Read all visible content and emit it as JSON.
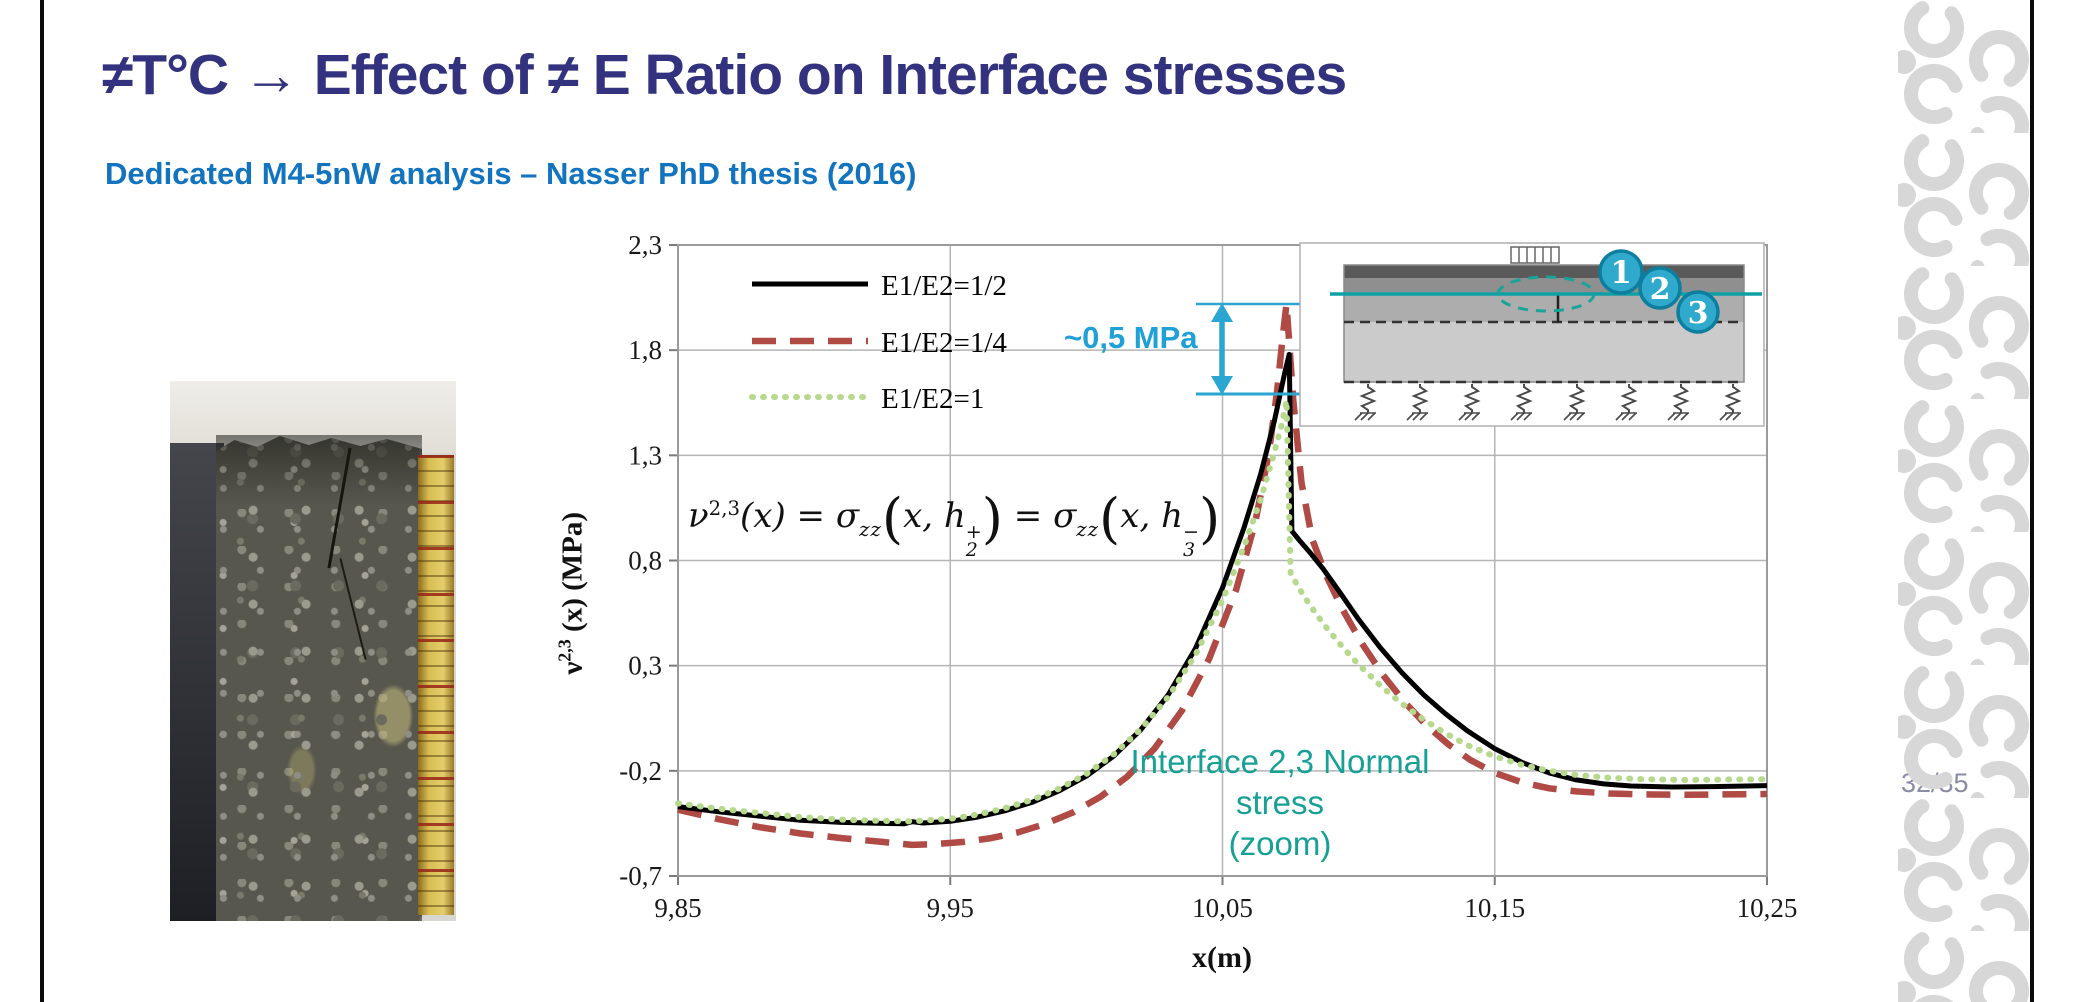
{
  "slide": {
    "title": "≠T°C → Effect of ≠ E Ratio on Interface stresses",
    "subtitle": "Dedicated M4-5nW analysis – Nasser PhD thesis (2016)",
    "page_number": "32/35"
  },
  "colors": {
    "title": "#32327E",
    "subtitle": "#1273BE",
    "teal_note": "#16A096",
    "cyan_annotation": "#1FA0D6",
    "grid": "#B5B5B5",
    "page_number": "#8B8BA6",
    "pattern_gray": "#D7D7D7",
    "badge_fill": "#2FA9CC",
    "badge_border": "#0E7E9E"
  },
  "photo": {
    "alt": "cracked-pavement-core-sample-photo-with-yellow-ruler"
  },
  "annotations": {
    "delta_label": "~0,5 MPa",
    "zoom_note_lines": [
      "Interface 2,3 Normal",
      "stress",
      "(zoom)"
    ]
  },
  "formula": {
    "nu": "ν",
    "nu_sup": "2,3",
    "x_arg": "(x)",
    "equals": " = ",
    "sigma": "σ",
    "sigma_sub": "zz",
    "paren_open": "(",
    "paren_close": ")",
    "arg_x": "x, ",
    "h": "h",
    "h2_sub": "2",
    "h2_sup": "+",
    "h3_sub": "3",
    "h3_sup": "−"
  },
  "inset": {
    "labels": [
      "1",
      "2",
      "3"
    ]
  },
  "chart_data": {
    "type": "line",
    "title": "",
    "xlabel": "x(m)",
    "ylabel": "ν2,3 (x) (MPa)",
    "ylabel_parts": {
      "base": "ν",
      "sup": "2,3",
      "rest": " (x) (MPa)"
    },
    "xlim": [
      9.85,
      10.25
    ],
    "ylim": [
      -0.7,
      2.3
    ],
    "x_ticks": [
      "9,85",
      "9,95",
      "10,05",
      "10,15",
      "10,25"
    ],
    "x_tick_values": [
      9.85,
      9.95,
      10.05,
      10.15,
      10.25
    ],
    "y_ticks": [
      "2,3",
      "1,8",
      "1,3",
      "0,8",
      "0,3",
      "-0,2",
      "-0,7"
    ],
    "y_tick_values": [
      2.3,
      1.8,
      1.3,
      0.8,
      0.3,
      -0.2,
      -0.7
    ],
    "grid": true,
    "legend_position": "upper-left-inside",
    "annotation_value": "~0,5 MPa",
    "series": [
      {
        "name": "E1/E2=1/2",
        "style": "solid",
        "color": "#000000",
        "width": 5,
        "dash": "",
        "points": [
          [
            9.85,
            -0.37
          ],
          [
            9.865,
            -0.395
          ],
          [
            9.88,
            -0.415
          ],
          [
            9.895,
            -0.435
          ],
          [
            9.91,
            -0.445
          ],
          [
            9.925,
            -0.45
          ],
          [
            9.933,
            -0.452
          ],
          [
            9.936,
            -0.442
          ],
          [
            9.94,
            -0.448
          ],
          [
            9.95,
            -0.44
          ],
          [
            9.96,
            -0.42
          ],
          [
            9.97,
            -0.39
          ],
          [
            9.98,
            -0.35
          ],
          [
            9.99,
            -0.295
          ],
          [
            10.0,
            -0.225
          ],
          [
            10.01,
            -0.13
          ],
          [
            10.02,
            -0.005
          ],
          [
            10.03,
            0.16
          ],
          [
            10.04,
            0.38
          ],
          [
            10.05,
            0.67
          ],
          [
            10.058,
            0.96
          ],
          [
            10.064,
            1.21
          ],
          [
            10.069,
            1.46
          ],
          [
            10.073,
            1.7
          ],
          [
            10.0745,
            1.78
          ],
          [
            10.0755,
            0.94
          ],
          [
            10.078,
            0.9
          ],
          [
            10.082,
            0.84
          ],
          [
            10.087,
            0.76
          ],
          [
            10.093,
            0.65
          ],
          [
            10.1,
            0.52
          ],
          [
            10.108,
            0.385
          ],
          [
            10.116,
            0.265
          ],
          [
            10.124,
            0.16
          ],
          [
            10.132,
            0.07
          ],
          [
            10.14,
            -0.01
          ],
          [
            10.15,
            -0.095
          ],
          [
            10.16,
            -0.16
          ],
          [
            10.17,
            -0.21
          ],
          [
            10.18,
            -0.243
          ],
          [
            10.19,
            -0.262
          ],
          [
            10.2,
            -0.272
          ],
          [
            10.215,
            -0.277
          ],
          [
            10.23,
            -0.275
          ],
          [
            10.25,
            -0.27
          ]
        ]
      },
      {
        "name": "E1/E2=1/4",
        "style": "dashed",
        "color": "#B04A45",
        "width": 6.5,
        "dash": "24 14",
        "points": [
          [
            9.85,
            -0.385
          ],
          [
            9.865,
            -0.43
          ],
          [
            9.88,
            -0.468
          ],
          [
            9.895,
            -0.498
          ],
          [
            9.91,
            -0.52
          ],
          [
            9.925,
            -0.538
          ],
          [
            9.936,
            -0.552
          ],
          [
            9.945,
            -0.548
          ],
          [
            9.955,
            -0.538
          ],
          [
            9.965,
            -0.52
          ],
          [
            9.975,
            -0.492
          ],
          [
            9.985,
            -0.452
          ],
          [
            9.995,
            -0.398
          ],
          [
            10.005,
            -0.325
          ],
          [
            10.015,
            -0.228
          ],
          [
            10.025,
            -0.095
          ],
          [
            10.035,
            0.085
          ],
          [
            10.045,
            0.33
          ],
          [
            10.055,
            0.66
          ],
          [
            10.062,
            0.98
          ],
          [
            10.067,
            1.31
          ],
          [
            10.07,
            1.6
          ],
          [
            10.072,
            1.85
          ],
          [
            10.0735,
            2.02
          ],
          [
            10.076,
            1.56
          ],
          [
            10.079,
            1.17
          ],
          [
            10.083,
            0.9
          ],
          [
            10.088,
            0.73
          ],
          [
            10.094,
            0.57
          ],
          [
            10.101,
            0.41
          ],
          [
            10.109,
            0.255
          ],
          [
            10.117,
            0.125
          ],
          [
            10.125,
            0.015
          ],
          [
            10.133,
            -0.075
          ],
          [
            10.141,
            -0.148
          ],
          [
            10.15,
            -0.21
          ],
          [
            10.16,
            -0.255
          ],
          [
            10.17,
            -0.283
          ],
          [
            10.18,
            -0.298
          ],
          [
            10.192,
            -0.308
          ],
          [
            10.205,
            -0.312
          ],
          [
            10.22,
            -0.314
          ],
          [
            10.25,
            -0.31
          ]
        ]
      },
      {
        "name": "E1/E2=1",
        "style": "dotted",
        "color": "#B6D98E",
        "width": 6,
        "dash": "1 10",
        "points": [
          [
            9.85,
            -0.355
          ],
          [
            9.865,
            -0.38
          ],
          [
            9.88,
            -0.4
          ],
          [
            9.895,
            -0.42
          ],
          [
            9.91,
            -0.432
          ],
          [
            9.925,
            -0.438
          ],
          [
            9.936,
            -0.44
          ],
          [
            9.95,
            -0.428
          ],
          [
            9.96,
            -0.408
          ],
          [
            9.97,
            -0.378
          ],
          [
            9.98,
            -0.338
          ],
          [
            9.99,
            -0.285
          ],
          [
            10.0,
            -0.215
          ],
          [
            10.01,
            -0.122
          ],
          [
            10.02,
            -0.002
          ],
          [
            10.03,
            0.15
          ],
          [
            10.04,
            0.35
          ],
          [
            10.05,
            0.61
          ],
          [
            10.058,
            0.87
          ],
          [
            10.064,
            1.09
          ],
          [
            10.069,
            1.31
          ],
          [
            10.072,
            1.46
          ],
          [
            10.0735,
            1.56
          ],
          [
            10.075,
            0.74
          ],
          [
            10.078,
            0.67
          ],
          [
            10.082,
            0.59
          ],
          [
            10.087,
            0.5
          ],
          [
            10.093,
            0.405
          ],
          [
            10.1,
            0.305
          ],
          [
            10.108,
            0.205
          ],
          [
            10.116,
            0.118
          ],
          [
            10.124,
            0.042
          ],
          [
            10.132,
            -0.022
          ],
          [
            10.14,
            -0.078
          ],
          [
            10.15,
            -0.132
          ],
          [
            10.16,
            -0.172
          ],
          [
            10.17,
            -0.2
          ],
          [
            10.18,
            -0.22
          ],
          [
            10.192,
            -0.233
          ],
          [
            10.205,
            -0.24
          ],
          [
            10.22,
            -0.243
          ],
          [
            10.25,
            -0.24
          ]
        ]
      }
    ]
  }
}
